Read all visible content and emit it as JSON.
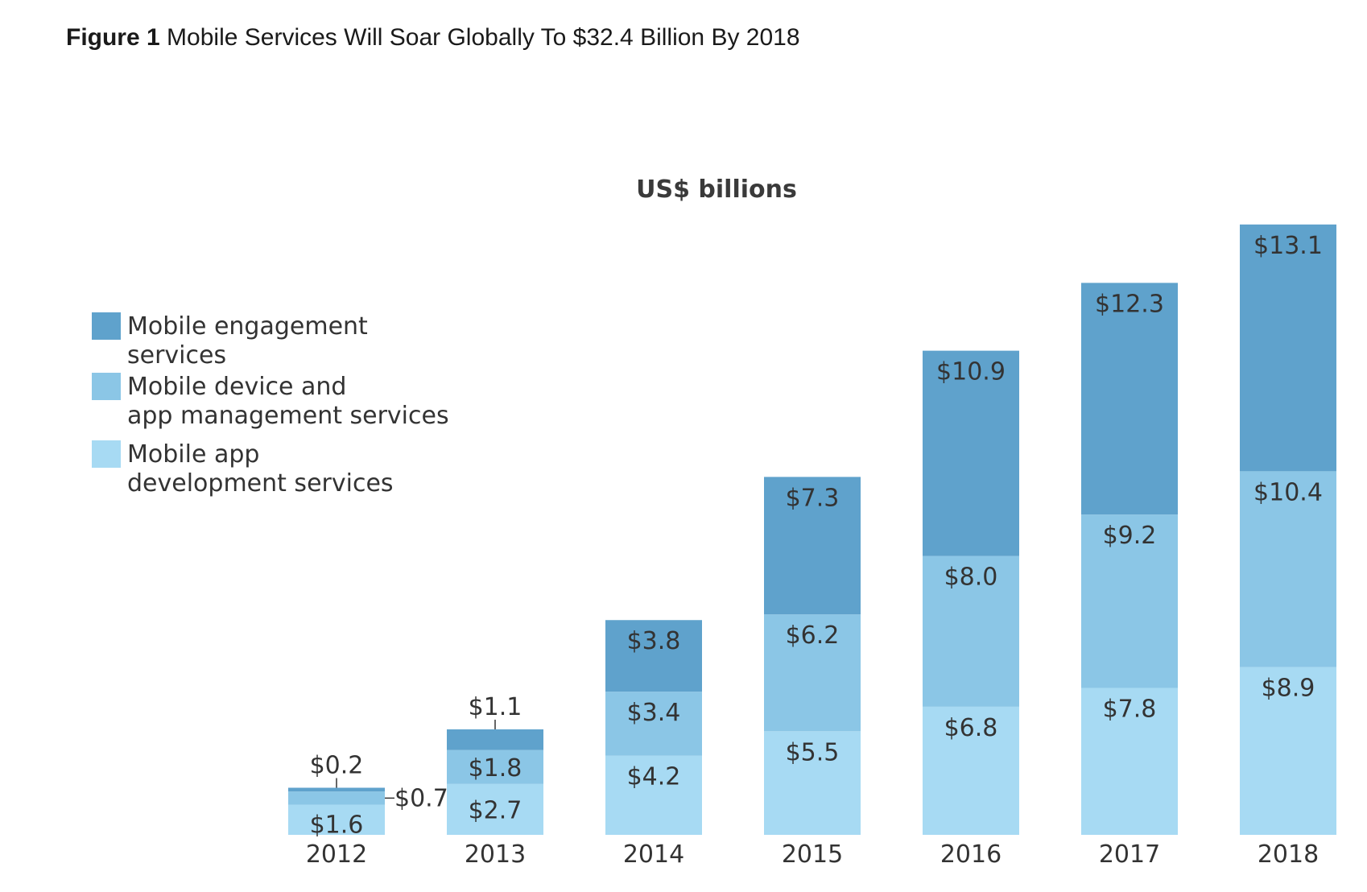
{
  "figure": {
    "label": "Figure 1",
    "title": "Mobile Services Will Soar Globally To $32.4 Billion By 2018"
  },
  "colors": {
    "engagement": "#5fa2cc",
    "management": "#8bc6e6",
    "development": "#a7daf3",
    "text": "#333333"
  },
  "chart_data": {
    "type": "bar",
    "stacked": true,
    "title": "US$ billions",
    "categories": [
      "2012",
      "2013",
      "2014",
      "2015",
      "2016",
      "2017",
      "2018"
    ],
    "series": [
      {
        "name": "Mobile app development services",
        "key": "development",
        "values": [
          1.6,
          2.7,
          4.2,
          5.5,
          6.8,
          7.8,
          8.9
        ],
        "labels": [
          "$1.6",
          "$2.7",
          "$4.2",
          "$5.5",
          "$6.8",
          "$7.8",
          "$8.9"
        ]
      },
      {
        "name": "Mobile device and app management services",
        "key": "management",
        "values": [
          0.7,
          1.8,
          3.4,
          6.2,
          8.0,
          9.2,
          10.4
        ],
        "labels": [
          "$0.7",
          "$1.8",
          "$3.4",
          "$6.2",
          "$8.0",
          "$9.2",
          "$10.4"
        ]
      },
      {
        "name": "Mobile engagement services",
        "key": "engagement",
        "values": [
          0.2,
          1.1,
          3.8,
          7.3,
          10.9,
          12.3,
          13.1
        ],
        "labels": [
          "$0.2",
          "$1.1",
          "$3.8",
          "$7.3",
          "$10.9",
          "$12.3",
          "$13.1"
        ]
      }
    ],
    "legend": [
      {
        "key": "engagement",
        "lines": [
          "Mobile engagement",
          "services"
        ]
      },
      {
        "key": "management",
        "lines": [
          "Mobile device and",
          "app management services"
        ]
      },
      {
        "key": "development",
        "lines": [
          "Mobile app",
          "development services"
        ]
      }
    ],
    "legend_position": "left",
    "grid": false
  }
}
